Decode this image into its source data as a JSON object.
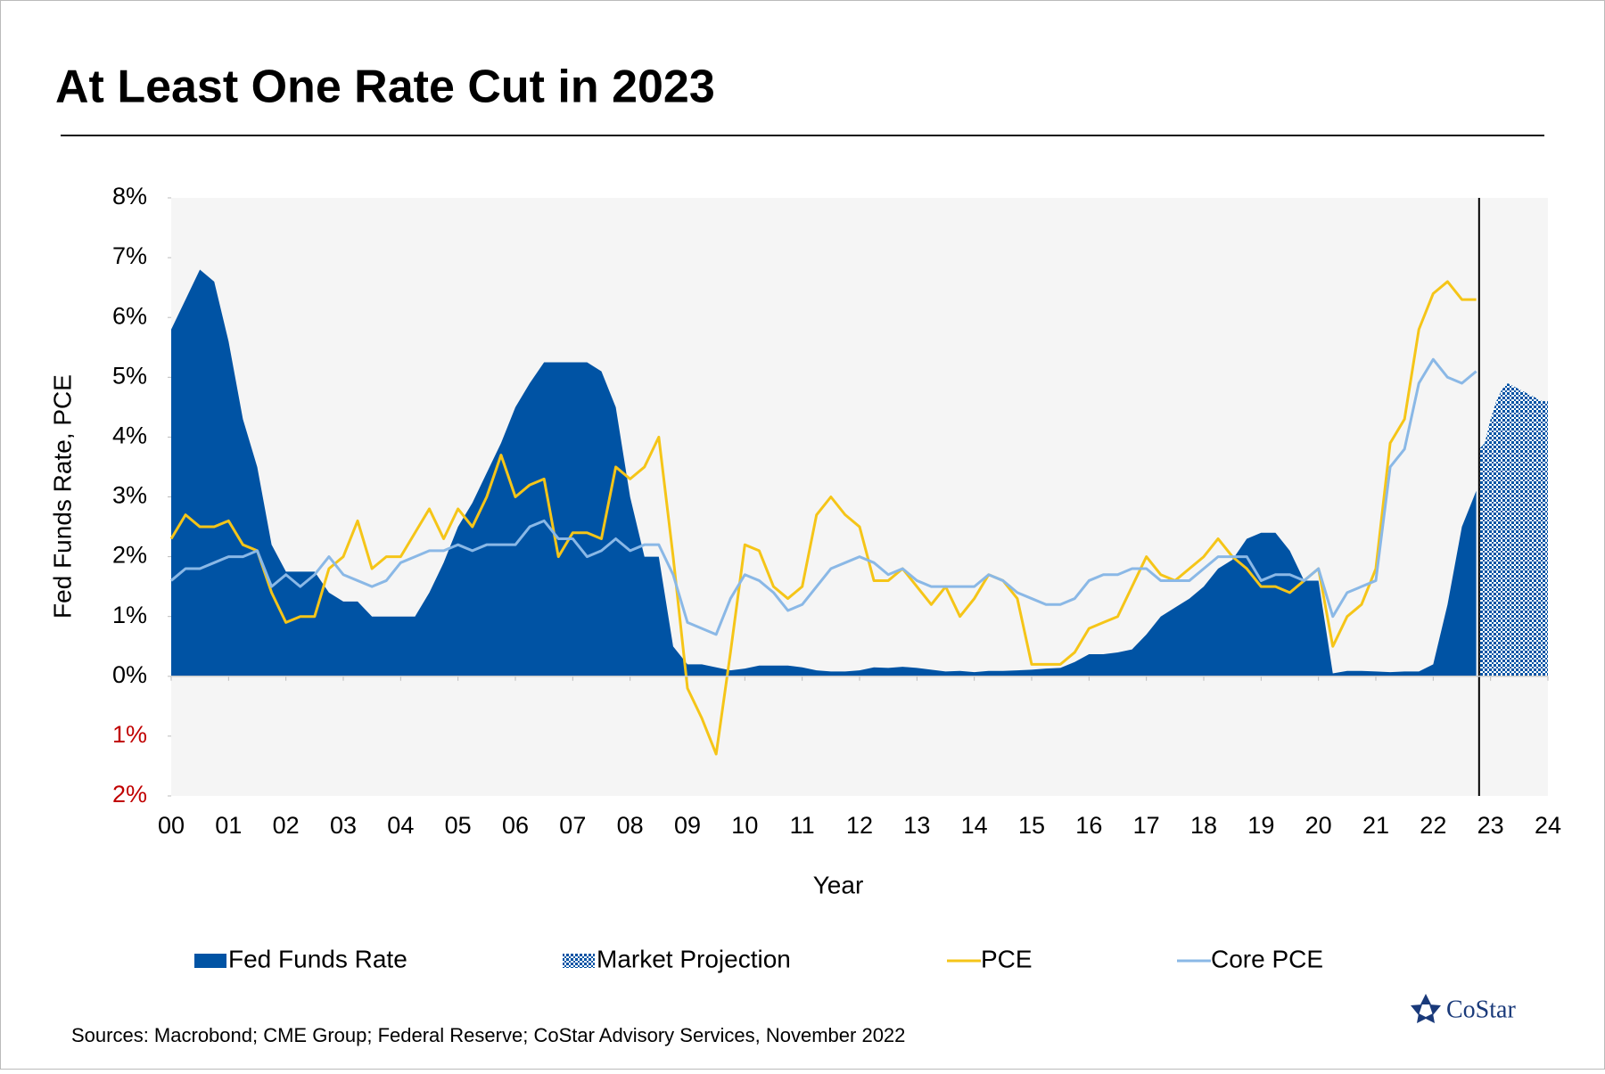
{
  "chart_data": {
    "type": "area",
    "title": "At Least One Rate Cut in 2023",
    "y_label": "Fed Funds Rate, PCE",
    "x_label": "Year",
    "source": "Sources: Macrobond; CME Group; Federal Reserve; CoStar Advisory Services, November 2022",
    "logo": "CoStar",
    "xlim": [
      0,
      24
    ],
    "xticks": [
      {
        "value": 0,
        "label": "00"
      },
      {
        "value": 1,
        "label": "01"
      },
      {
        "value": 2,
        "label": "02"
      },
      {
        "value": 3,
        "label": "03"
      },
      {
        "value": 4,
        "label": "04"
      },
      {
        "value": 5,
        "label": "05"
      },
      {
        "value": 6,
        "label": "06"
      },
      {
        "value": 7,
        "label": "07"
      },
      {
        "value": 8,
        "label": "08"
      },
      {
        "value": 9,
        "label": "09"
      },
      10,
      11,
      12,
      13,
      14,
      15,
      16,
      17,
      18,
      19,
      20,
      21,
      22,
      23,
      24
    ],
    "ylim": [
      -2,
      8
    ],
    "yticks": [
      {
        "value": 8,
        "label": "8%"
      },
      {
        "value": 7,
        "label": "7%"
      },
      {
        "value": 6,
        "label": "6%"
      },
      {
        "value": 5,
        "label": "5%"
      },
      {
        "value": 4,
        "label": "4%"
      },
      {
        "value": 3,
        "label": "3%"
      },
      {
        "value": 2,
        "label": "2%"
      },
      {
        "value": 1,
        "label": "1%"
      },
      {
        "value": 0,
        "label": "0%"
      },
      {
        "value": -1,
        "label": "1%"
      },
      {
        "value": -2,
        "label": "2%"
      }
    ],
    "negative_tick_color": "#c00000",
    "x": [
      0,
      0.25,
      0.5,
      0.75,
      1,
      1.25,
      1.5,
      1.75,
      2,
      2.25,
      2.5,
      2.75,
      3,
      3.25,
      3.5,
      3.75,
      4,
      4.25,
      4.5,
      4.75,
      5,
      5.25,
      5.5,
      5.75,
      6,
      6.25,
      6.5,
      6.75,
      7,
      7.25,
      7.5,
      7.75,
      8,
      8.25,
      8.5,
      8.75,
      9,
      9.25,
      9.5,
      9.75,
      10,
      10.25,
      10.5,
      10.75,
      11,
      11.25,
      11.5,
      11.75,
      12,
      12.25,
      12.5,
      12.75,
      13,
      13.25,
      13.5,
      13.75,
      14,
      14.25,
      14.5,
      14.75,
      15,
      15.25,
      15.5,
      15.75,
      16,
      16.25,
      16.5,
      16.75,
      17,
      17.25,
      17.5,
      17.75,
      18,
      18.25,
      18.5,
      18.75,
      19,
      19.25,
      19.5,
      19.75,
      20,
      20.25,
      20.5,
      20.75,
      21,
      21.25,
      21.5,
      21.75,
      22,
      22.25,
      22.5,
      22.75
    ],
    "series": [
      {
        "name": "Fed Funds Rate",
        "style": "area",
        "color": "#0053a4",
        "values": [
          5.8,
          6.3,
          6.8,
          6.6,
          5.6,
          4.3,
          3.5,
          2.2,
          1.75,
          1.75,
          1.75,
          1.4,
          1.25,
          1.25,
          1.0,
          1.0,
          1.0,
          1.0,
          1.4,
          1.9,
          2.5,
          2.9,
          3.4,
          3.9,
          4.5,
          4.9,
          5.25,
          5.25,
          5.25,
          5.25,
          5.1,
          4.5,
          3.0,
          2.0,
          2.0,
          0.5,
          0.2,
          0.2,
          0.15,
          0.1,
          0.13,
          0.18,
          0.18,
          0.18,
          0.15,
          0.1,
          0.08,
          0.08,
          0.1,
          0.15,
          0.14,
          0.16,
          0.14,
          0.11,
          0.08,
          0.09,
          0.07,
          0.09,
          0.09,
          0.1,
          0.11,
          0.13,
          0.14,
          0.24,
          0.37,
          0.37,
          0.4,
          0.45,
          0.7,
          1.0,
          1.15,
          1.3,
          1.5,
          1.8,
          1.95,
          2.3,
          2.4,
          2.4,
          2.1,
          1.6,
          1.6,
          0.05,
          0.09,
          0.09,
          0.08,
          0.07,
          0.08,
          0.08,
          0.2,
          1.2,
          2.5,
          3.1
        ]
      },
      {
        "name": "Market Projection",
        "style": "hatched-area",
        "color": "#0053a4",
        "x": [
          22.8,
          22.9,
          23.0,
          23.1,
          23.2,
          23.3,
          23.4,
          23.5,
          23.6,
          23.7,
          23.8,
          23.9,
          24.0
        ],
        "values": [
          3.8,
          3.9,
          4.3,
          4.6,
          4.8,
          4.9,
          4.85,
          4.8,
          4.75,
          4.7,
          4.65,
          4.6,
          4.6
        ]
      },
      {
        "name": "PCE",
        "style": "line",
        "color": "#f5c518",
        "values": [
          2.3,
          2.7,
          2.5,
          2.5,
          2.6,
          2.2,
          2.1,
          1.4,
          0.9,
          1.0,
          1.0,
          1.8,
          2.0,
          2.6,
          1.8,
          2.0,
          2.0,
          2.4,
          2.8,
          2.3,
          2.8,
          2.5,
          3.0,
          3.7,
          3.0,
          3.2,
          3.3,
          2.0,
          2.4,
          2.4,
          2.3,
          3.5,
          3.3,
          3.5,
          4.0,
          2.0,
          -0.2,
          -0.7,
          -1.3,
          0.4,
          2.2,
          2.1,
          1.5,
          1.3,
          1.5,
          2.7,
          3.0,
          2.7,
          2.5,
          1.6,
          1.6,
          1.8,
          1.5,
          1.2,
          1.5,
          1.0,
          1.3,
          1.7,
          1.6,
          1.3,
          0.2,
          0.2,
          0.2,
          0.4,
          0.8,
          0.9,
          1.0,
          1.5,
          2.0,
          1.7,
          1.6,
          1.8,
          2.0,
          2.3,
          2.0,
          1.8,
          1.5,
          1.5,
          1.4,
          1.6,
          1.8,
          0.5,
          1.0,
          1.2,
          1.8,
          3.9,
          4.3,
          5.8,
          6.4,
          6.6,
          6.3,
          6.3
        ]
      },
      {
        "name": "Core PCE",
        "style": "line",
        "color": "#8ab8e6",
        "values": [
          1.6,
          1.8,
          1.8,
          1.9,
          2.0,
          2.0,
          2.1,
          1.5,
          1.7,
          1.5,
          1.7,
          2.0,
          1.7,
          1.6,
          1.5,
          1.6,
          1.9,
          2.0,
          2.1,
          2.1,
          2.2,
          2.1,
          2.2,
          2.2,
          2.2,
          2.5,
          2.6,
          2.3,
          2.3,
          2.0,
          2.1,
          2.3,
          2.1,
          2.2,
          2.2,
          1.7,
          0.9,
          0.8,
          0.7,
          1.3,
          1.7,
          1.6,
          1.4,
          1.1,
          1.2,
          1.5,
          1.8,
          1.9,
          2.0,
          1.9,
          1.7,
          1.8,
          1.6,
          1.5,
          1.5,
          1.5,
          1.5,
          1.7,
          1.6,
          1.4,
          1.3,
          1.2,
          1.2,
          1.3,
          1.6,
          1.7,
          1.7,
          1.8,
          1.8,
          1.6,
          1.6,
          1.6,
          1.8,
          2.0,
          2.0,
          2.0,
          1.6,
          1.7,
          1.7,
          1.6,
          1.8,
          1.0,
          1.4,
          1.5,
          1.6,
          3.5,
          3.8,
          4.9,
          5.3,
          5.0,
          4.9,
          5.1
        ]
      }
    ]
  }
}
